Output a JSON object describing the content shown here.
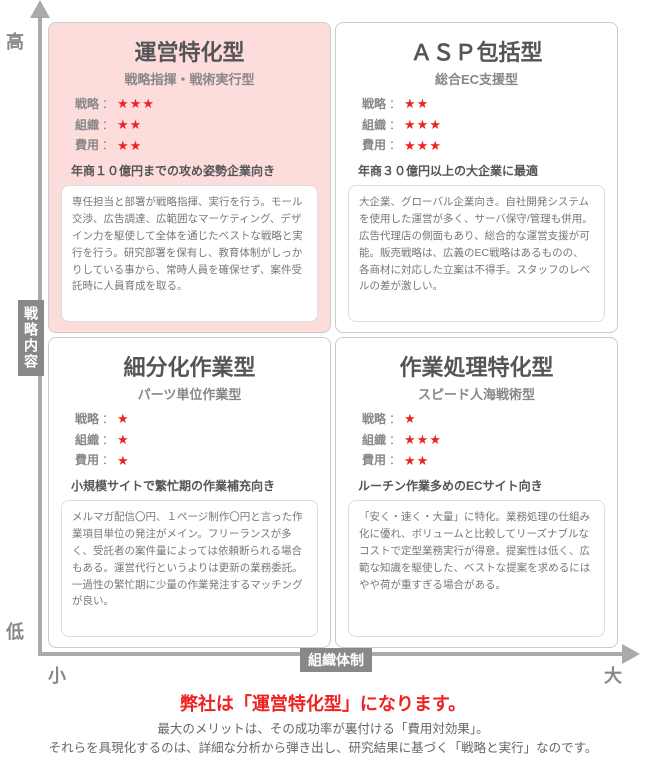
{
  "axes": {
    "y_high": "高",
    "y_low": "低",
    "x_small": "小",
    "x_large": "大",
    "y_label": "戦略内容",
    "x_label": "組織体制",
    "arrow_color": "#aaaaaa",
    "label_bg": "#888888",
    "label_fg": "#ffffff"
  },
  "rating_labels": {
    "strategy": "戦略",
    "org": "組織",
    "cost": "費用",
    "sep": "："
  },
  "star_glyph": "★",
  "star_color": "#ee2222",
  "quads": [
    {
      "title": "運営特化型",
      "subtitle": "戦略指揮・戦術実行型",
      "highlight": true,
      "ratings": {
        "strategy": 3,
        "org": 2,
        "cost": 2
      },
      "target": "年商１０億円までの攻め姿勢企業向き",
      "desc": "専任担当と部署が戦略指揮、実行を行う。モール交渉、広告調達、広範囲なマーケティング、デザイン力を駆使して全体を通じたベストな戦略と実行を行う。研究部署を保有し、教育体制がしっかりしている事から、常時人員を確保せず、案件受託時に人員育成を取る。"
    },
    {
      "title": "ＡＳＰ包括型",
      "subtitle": "総合EC支援型",
      "highlight": false,
      "ratings": {
        "strategy": 2,
        "org": 3,
        "cost": 3
      },
      "target": "年商３０億円以上の大企業に最適",
      "desc": "大企業、グローバル企業向き。自社開発システムを使用した運営が多く、サーバ保守/管理も併用。広告代理店の側面もあり、総合的な運営支援が可能。販売戦略は、広義のEC戦略はあるものの、各商材に対応した立案は不得手。スタッフのレベルの差が激しい。"
    },
    {
      "title": "細分化作業型",
      "subtitle": "パーツ単位作業型",
      "highlight": false,
      "ratings": {
        "strategy": 1,
        "org": 1,
        "cost": 1
      },
      "target": "小規模サイトで繁忙期の作業補充向き",
      "desc": "メルマガ配信〇円、１ページ制作〇円と言った作業項目単位の発注がメイン。フリーランスが多く、受託者の案件量によっては依頼断られる場合もある。運営代行というよりは更新の業務委託。一過性の繁忙期に少量の作業発注するマッチングが良い。"
    },
    {
      "title": "作業処理特化型",
      "subtitle": "スピード人海戦術型",
      "highlight": false,
      "ratings": {
        "strategy": 1,
        "org": 3,
        "cost": 2
      },
      "target": "ルーチン作業多めのECサイト向き",
      "desc": "「安く・速く・大量」に特化。業務処理の仕組み化に優れ、ボリュームと比較してリーズナブルなコストで定型業務実行が得意。提案性は低く、広範な知識を駆使した、ベストな提案を求めるにはやや荷が重すぎる場合がある。"
    }
  ],
  "footer": {
    "main": "弊社は「運営特化型」になります。",
    "line1": "最大のメリットは、その成功率が裏付ける「費用対効果」。",
    "line2": "それらを具現化するのは、詳細な分析から弾き出し、研究結果に基づく「戦略と実行」なのです。",
    "main_color": "#ee2222",
    "sub_color": "#666666"
  },
  "colors": {
    "highlight_bg": "#fddcdc",
    "quad_border": "#cccccc",
    "title_color": "#555555",
    "sub_color": "#888888",
    "desc_color": "#777777"
  }
}
